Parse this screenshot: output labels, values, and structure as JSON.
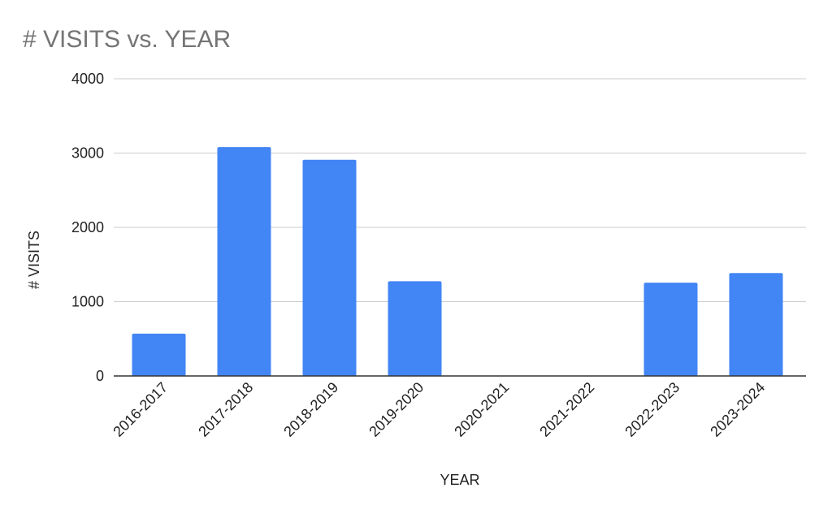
{
  "chart_data": {
    "type": "bar",
    "title": "# VISITS vs. YEAR",
    "xlabel": "YEAR",
    "ylabel": "# VISITS",
    "categories": [
      "2016-2017",
      "2017-2018",
      "2018-2019",
      "2019-2020",
      "2020-2021",
      "2021-2022",
      "2022-2023",
      "2023-2024"
    ],
    "values": [
      570,
      3080,
      2910,
      1275,
      0,
      0,
      1255,
      1385
    ],
    "ylim": [
      0,
      4000
    ],
    "yticks": [
      "0",
      "1000",
      "2000",
      "3000",
      "4000"
    ],
    "grid": true,
    "legend": "none",
    "bar_color": "#4285f4"
  }
}
